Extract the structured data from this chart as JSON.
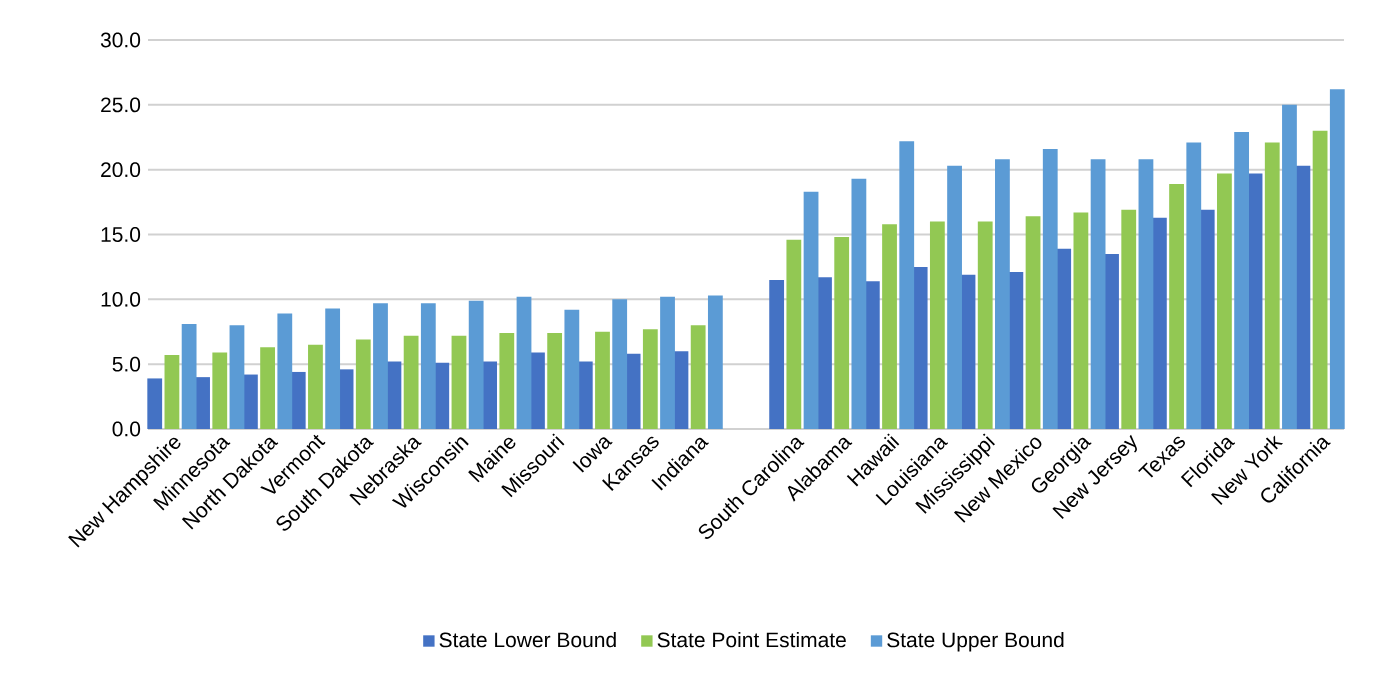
{
  "chart_data": {
    "type": "bar",
    "categories": [
      "New Hampshire",
      "Minnesota",
      "North Dakota",
      "Vermont",
      "South Dakota",
      "Nebraska",
      "Wisconsin",
      "Maine",
      "Missouri",
      "Iowa",
      "Kansas",
      "Indiana",
      null,
      "South Carolina",
      "Alabama",
      "Hawaii",
      "Louisiana",
      "Mississippi",
      "New Mexico",
      "Georgia",
      "New Jersey",
      "Texas",
      "Florida",
      "New York",
      "California"
    ],
    "series": [
      {
        "name": "State Lower Bound",
        "color": "#4472c4",
        "values": [
          3.9,
          4.0,
          4.2,
          4.4,
          4.6,
          5.2,
          5.1,
          5.2,
          5.9,
          5.2,
          5.8,
          6.0,
          null,
          11.5,
          11.7,
          11.4,
          12.5,
          11.9,
          12.1,
          13.9,
          13.5,
          16.3,
          16.9,
          19.7,
          20.3
        ]
      },
      {
        "name": "State Point Estimate",
        "color": "#92c853",
        "values": [
          5.7,
          5.9,
          6.3,
          6.5,
          6.9,
          7.2,
          7.2,
          7.4,
          7.4,
          7.5,
          7.7,
          8.0,
          null,
          14.6,
          14.8,
          15.8,
          16.0,
          16.0,
          16.4,
          16.7,
          16.9,
          18.9,
          19.7,
          22.1,
          23.0
        ]
      },
      {
        "name": "State Upper Bound",
        "color": "#5b9bd5",
        "values": [
          8.1,
          8.0,
          8.9,
          9.3,
          9.7,
          9.7,
          9.9,
          10.2,
          9.2,
          10.0,
          10.2,
          10.3,
          null,
          18.3,
          19.3,
          22.2,
          20.3,
          20.8,
          21.6,
          20.8,
          20.8,
          22.1,
          22.9,
          25.0,
          26.2
        ]
      }
    ],
    "ylim": [
      0,
      30
    ],
    "yticks": [
      {
        "value": 0,
        "label": "0.0"
      },
      {
        "value": 5,
        "label": "5.0"
      },
      {
        "value": 10,
        "label": "10.0"
      },
      {
        "value": 15,
        "label": "15.0"
      },
      {
        "value": 20,
        "label": "20.0"
      },
      {
        "value": 25,
        "label": "25.0"
      },
      {
        "value": 30,
        "label": "30.0"
      }
    ],
    "grid": "y",
    "legend": "bottom"
  }
}
